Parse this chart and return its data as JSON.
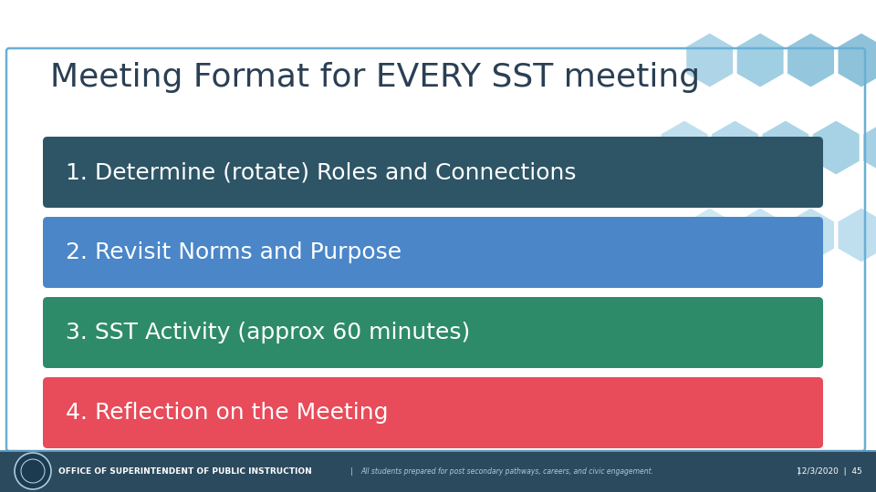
{
  "title": "Meeting Format for EVERY SST meeting",
  "title_color": "#2B3F54",
  "title_fontsize": 26,
  "bg_color": "#FFFFFF",
  "items": [
    {
      "text": "1. Determine (rotate) Roles and Connections",
      "color": "#2D5566"
    },
    {
      "text": "2. Revisit Norms and Purpose",
      "color": "#4A86C8"
    },
    {
      "text": "3. SST Activity (approx 60 minutes)",
      "color": "#2E8B6A"
    },
    {
      "text": "4. Reflection on the Meeting",
      "color": "#E84B5A"
    }
  ],
  "item_text_color": "#FFFFFF",
  "item_fontsize": 18,
  "footer_bg": "#2C4A5E",
  "footer_accent": "#5B9BBF",
  "footer_text_left": "OFFICE OF SUPERINTENDENT OF PUBLIC INSTRUCTION",
  "footer_text_mid": "All students prepared for post secondary pathways, careers, and civic engagement.",
  "footer_text_right": "12/3/2020  |  45",
  "footer_color": "#FFFFFF",
  "footer_fontsize": 6.5,
  "border_color": "#6AB0D4"
}
